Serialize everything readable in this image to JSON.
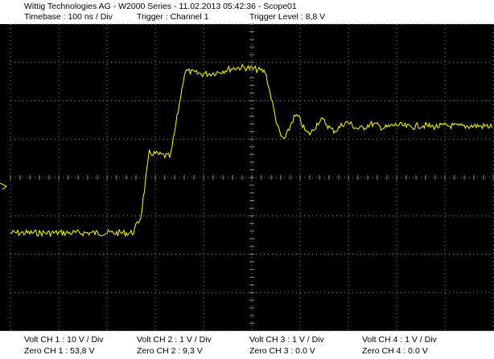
{
  "header": {
    "title": "Wittig Technologies AG - W2000 Series  -  11.02.2013 05:42:36 - Scope01",
    "timebase": "Timebase : 100 ns / Div",
    "trigger": "Trigger : Channel 1",
    "trigger_level": "Trigger Level : 8,8 V"
  },
  "channels": [
    {
      "volt": "Volt CH 1 : 10 V / Div",
      "zero": "Zero CH 1 : 53,8 V"
    },
    {
      "volt": "Volt CH 2 : 1 V / Div",
      "zero": "Zero CH 2 : 9,3 V"
    },
    {
      "volt": "Volt CH 3 : 1 V / Div",
      "zero": "Zero CH 3 : 0.0 V"
    },
    {
      "volt": "Volt CH 4 : 1 V / Div",
      "zero": "Zero CH 4 : 0.0 V"
    }
  ]
}
